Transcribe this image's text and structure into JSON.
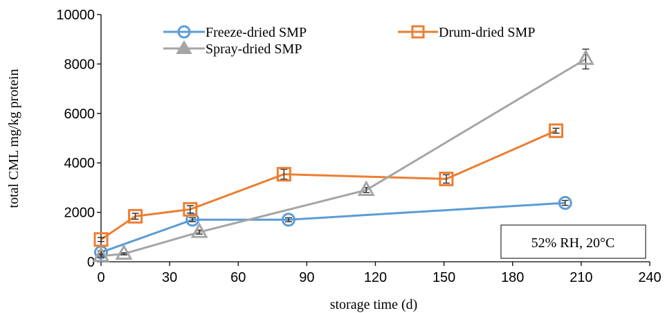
{
  "chart_data": {
    "type": "line",
    "xlabel": "storage time (d)",
    "ylabel": "total CML mg/kg protein",
    "xlim": [
      0,
      240
    ],
    "ylim": [
      0,
      10000
    ],
    "xticks": [
      0,
      30,
      60,
      90,
      120,
      150,
      180,
      210,
      240
    ],
    "yticks": [
      0,
      2000,
      4000,
      6000,
      8000,
      10000
    ],
    "grid": false,
    "legend_position": "top",
    "annotation": "52% RH, 20°C",
    "series": [
      {
        "name": "Freeze-dried SMP",
        "marker": "circle",
        "color": "#5B9BD5",
        "x": [
          0,
          40,
          82,
          203
        ],
        "y": [
          380,
          1700,
          1700,
          2380
        ],
        "err": [
          60,
          80,
          80,
          100
        ]
      },
      {
        "name": "Drum-dried SMP",
        "marker": "square",
        "color": "#ED7D31",
        "x": [
          0,
          15,
          39,
          80,
          151,
          199
        ],
        "y": [
          900,
          1840,
          2120,
          3540,
          3350,
          5300
        ],
        "err": [
          80,
          120,
          150,
          200,
          170,
          100
        ]
      },
      {
        "name": "Spray-dried SMP",
        "marker": "triangle",
        "color": "#A5A5A5",
        "x": [
          0,
          10,
          43,
          116,
          212
        ],
        "y": [
          230,
          320,
          1200,
          2900,
          8200
        ],
        "err": [
          40,
          40,
          80,
          100,
          400
        ]
      }
    ]
  }
}
